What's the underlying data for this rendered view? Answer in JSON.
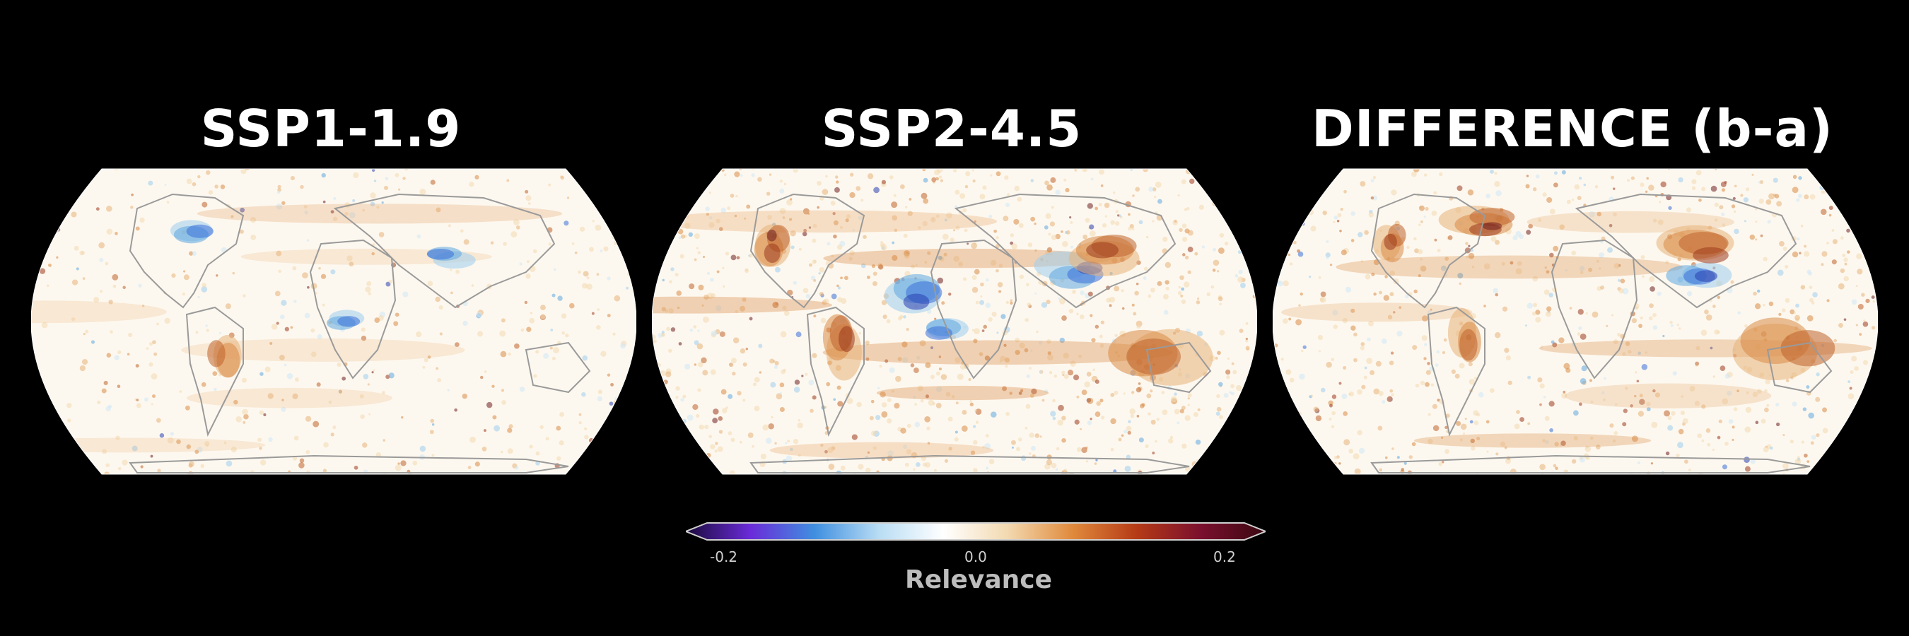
{
  "panels": [
    {
      "title": "SSP1-1.9"
    },
    {
      "title": "SSP2-4.5"
    },
    {
      "title": "DIFFERENCE (b-a)"
    }
  ],
  "colorbar": {
    "label": "Relevance",
    "ticks": [
      "-0.2",
      "0.0",
      "0.2"
    ],
    "range": [
      -0.2,
      0.2
    ],
    "colors": [
      "#1a0a3a",
      "#6a2bd8",
      "#3f8fe0",
      "#b9ddf4",
      "#ffffff",
      "#f3d9b0",
      "#e08a3c",
      "#b53a16",
      "#7a0f2e",
      "#3a0810"
    ]
  },
  "styles": {
    "land_outline": "#9a9a9a",
    "map_background": "#fdf8ef"
  }
}
